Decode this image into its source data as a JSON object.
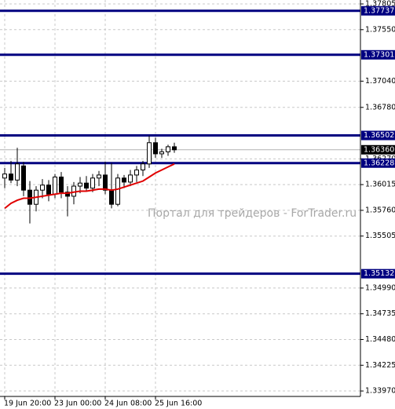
{
  "chart_data": {
    "type": "candlestick",
    "watermark": "Портал для трейдеров - ForTrader.ru",
    "categories": [
      "19 Jun 20:00",
      null,
      null,
      null,
      null,
      null,
      null,
      null,
      "23 Jun 00:00",
      null,
      null,
      null,
      null,
      null,
      null,
      null,
      "24 Jun 08:00",
      null,
      null,
      null,
      null,
      null,
      null,
      null,
      "25 Jun 16:00",
      null,
      null,
      null
    ],
    "open": [
      1.3608,
      1.3612,
      1.3606,
      1.362,
      1.3596,
      1.3582,
      1.3596,
      1.3601,
      1.3592,
      1.3609,
      1.3594,
      1.359,
      1.36,
      1.3603,
      1.3598,
      1.3608,
      1.3611,
      1.3596,
      1.3582,
      1.3608,
      1.3604,
      1.3611,
      1.3616,
      1.3622,
      1.3643,
      1.3632,
      1.3634,
      1.3639
    ],
    "high": [
      1.3618,
      1.3625,
      1.3638,
      1.3624,
      1.3605,
      1.36,
      1.3607,
      1.3606,
      1.3612,
      1.3614,
      1.36,
      1.3604,
      1.3609,
      1.361,
      1.3612,
      1.3615,
      1.3624,
      1.3623,
      1.3612,
      1.3611,
      1.3616,
      1.362,
      1.3625,
      1.365,
      1.3648,
      1.3637,
      1.3641,
      1.3643
    ],
    "low": [
      1.3598,
      1.3603,
      1.36,
      1.359,
      1.3563,
      1.3575,
      1.3588,
      1.3585,
      1.3588,
      1.3588,
      1.357,
      1.3582,
      1.3593,
      1.3595,
      1.3594,
      1.36,
      1.3592,
      1.3578,
      1.358,
      1.3598,
      1.36,
      1.3604,
      1.361,
      1.3618,
      1.3628,
      1.3628,
      1.363,
      1.3633
    ],
    "close": [
      1.3612,
      1.3606,
      1.3622,
      1.3596,
      1.3582,
      1.3596,
      1.3601,
      1.3592,
      1.3609,
      1.3594,
      1.359,
      1.36,
      1.3603,
      1.3598,
      1.3608,
      1.3611,
      1.3596,
      1.3582,
      1.3608,
      1.3604,
      1.3611,
      1.3616,
      1.3622,
      1.3643,
      1.3632,
      1.3634,
      1.3639,
      1.3636
    ],
    "bull_color": "#ffffff",
    "bear_color": "#000000",
    "ma": {
      "color": "#e00000",
      "values": [
        1.3578,
        1.3583,
        1.3586,
        1.3588,
        1.3588,
        1.3589,
        1.359,
        1.3591,
        1.3592,
        1.3593,
        1.3593,
        1.3594,
        1.3595,
        1.3595,
        1.3596,
        1.3597,
        1.3597,
        1.3596,
        1.3597,
        1.3599,
        1.3601,
        1.3603,
        1.3605,
        1.3609,
        1.3613,
        1.3616,
        1.3619,
        1.3622
      ]
    },
    "levels": [
      1.37737,
      1.37301,
      1.36502,
      1.36228,
      1.35132
    ],
    "level_color": "#000080",
    "current_price": {
      "value": 1.3636,
      "label": "1.36360"
    },
    "ylim": [
      1.33916,
      1.37844
    ],
    "yticks": [
      1.37805,
      {
        "value": 1.3755,
        "label": "1.37550"
      },
      {
        "value": 1.3704,
        "label": "1.37040"
      },
      {
        "value": 1.3678,
        "label": "1.36780"
      },
      {
        "value": 1.3627,
        "label": "1.36270"
      },
      1.36015,
      {
        "value": 1.3576,
        "label": "1.35760"
      },
      1.35505,
      {
        "value": 1.3499,
        "label": "1.34990"
      },
      1.34735,
      {
        "value": 1.3448,
        "label": "1.34480"
      },
      1.34225,
      {
        "value": 1.3397,
        "label": "1.33970"
      }
    ],
    "grid": true
  }
}
